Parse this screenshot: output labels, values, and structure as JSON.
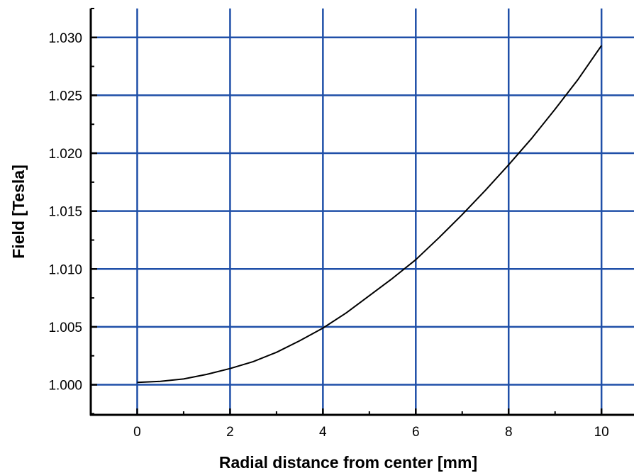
{
  "chart_data": {
    "type": "line",
    "title": "",
    "xlabel": "Radial distance from center [mm]",
    "ylabel": "Field [Tesla]",
    "xlim": [
      -1,
      10.7
    ],
    "ylim": [
      0.9974,
      1.0325
    ],
    "xticks": [
      0,
      2,
      4,
      6,
      8,
      10
    ],
    "xtick_labels": [
      "0",
      "2",
      "4",
      "6",
      "8",
      "10"
    ],
    "yticks": [
      1.0,
      1.005,
      1.01,
      1.015,
      1.02,
      1.025,
      1.03
    ],
    "ytick_labels": [
      "1.000",
      "1.005",
      "1.010",
      "1.015",
      "1.020",
      "1.025",
      "1.030"
    ],
    "grid": true,
    "grid_color": "#1f4fa8",
    "line_color": "#000000",
    "series": [
      {
        "x": [
          0,
          0.5,
          1,
          1.5,
          2,
          2.5,
          3,
          3.5,
          4,
          4.5,
          5,
          5.5,
          6,
          6.5,
          7,
          7.5,
          8,
          8.5,
          9,
          9.5,
          10
        ],
        "y": [
          1.0002,
          1.0003,
          1.0005,
          1.0009,
          1.0014,
          1.002,
          1.0028,
          1.0038,
          1.0049,
          1.0062,
          1.0077,
          1.0092,
          1.0108,
          1.0127,
          1.0147,
          1.0168,
          1.019,
          1.0213,
          1.0238,
          1.0264,
          1.0293
        ]
      }
    ]
  }
}
